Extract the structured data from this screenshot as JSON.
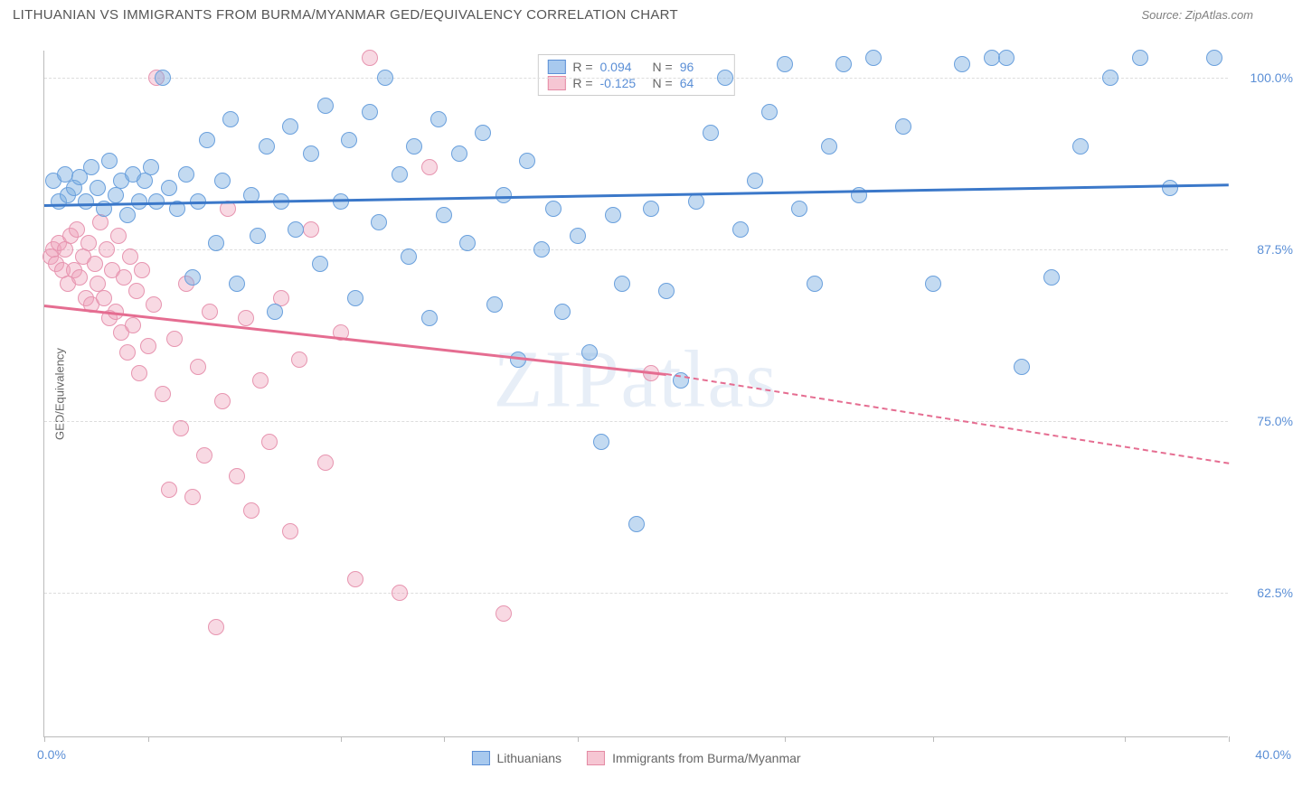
{
  "header": {
    "title": "LITHUANIAN VS IMMIGRANTS FROM BURMA/MYANMAR GED/EQUIVALENCY CORRELATION CHART",
    "source": "Source: ZipAtlas.com"
  },
  "watermark": "ZIPatlas",
  "axes": {
    "y_title": "GED/Equivalency",
    "x_min": 0.0,
    "x_max": 40.0,
    "x_start_label": "0.0%",
    "x_end_label": "40.0%",
    "x_ticks": [
      0,
      3.5,
      10,
      13.5,
      18,
      25,
      30,
      36.5,
      40
    ],
    "y_min": 52.0,
    "y_max": 102.0,
    "y_gridlines": [
      62.5,
      75.0,
      87.5,
      100.0
    ],
    "y_labels": [
      "62.5%",
      "75.0%",
      "87.5%",
      "100.0%"
    ]
  },
  "stats_legend": {
    "rows": [
      {
        "swatch_fill": "#a8c9ee",
        "swatch_border": "#5b8fd6",
        "r_label": "R =",
        "r_value": "0.094",
        "n_label": "N =",
        "n_value": "96"
      },
      {
        "swatch_fill": "#f6c6d3",
        "swatch_border": "#e48aa4",
        "r_label": "R =",
        "r_value": "-0.125",
        "n_label": "N =",
        "n_value": "64"
      }
    ]
  },
  "bottom_legend": {
    "items": [
      {
        "swatch_fill": "#a8c9ee",
        "swatch_border": "#5b8fd6",
        "label": "Lithuanians"
      },
      {
        "swatch_fill": "#f6c6d3",
        "swatch_border": "#e48aa4",
        "label": "Immigrants from Burma/Myanmar"
      }
    ]
  },
  "series": {
    "blue": {
      "fill": "rgba(122, 172, 224, 0.45)",
      "stroke": "#6aa0dd",
      "radius": 9,
      "trend_color": "#3b78c9",
      "trend": {
        "x1": 0,
        "y1": 90.8,
        "x2": 40,
        "y2": 92.3
      },
      "points": [
        [
          0.3,
          92.5
        ],
        [
          0.5,
          91.0
        ],
        [
          0.7,
          93.0
        ],
        [
          0.8,
          91.5
        ],
        [
          1.0,
          92.0
        ],
        [
          1.2,
          92.8
        ],
        [
          1.4,
          91.0
        ],
        [
          1.6,
          93.5
        ],
        [
          1.8,
          92.0
        ],
        [
          2.0,
          90.5
        ],
        [
          2.2,
          94.0
        ],
        [
          2.4,
          91.5
        ],
        [
          2.6,
          92.5
        ],
        [
          2.8,
          90.0
        ],
        [
          3.0,
          93.0
        ],
        [
          3.2,
          91.0
        ],
        [
          3.4,
          92.5
        ],
        [
          3.6,
          93.5
        ],
        [
          3.8,
          91.0
        ],
        [
          4.0,
          100.0
        ],
        [
          4.2,
          92.0
        ],
        [
          4.5,
          90.5
        ],
        [
          4.8,
          93.0
        ],
        [
          5.0,
          85.5
        ],
        [
          5.2,
          91.0
        ],
        [
          5.5,
          95.5
        ],
        [
          5.8,
          88.0
        ],
        [
          6.0,
          92.5
        ],
        [
          6.3,
          97.0
        ],
        [
          6.5,
          85.0
        ],
        [
          7.0,
          91.5
        ],
        [
          7.2,
          88.5
        ],
        [
          7.5,
          95.0
        ],
        [
          7.8,
          83.0
        ],
        [
          8.0,
          91.0
        ],
        [
          8.3,
          96.5
        ],
        [
          8.5,
          89.0
        ],
        [
          9.0,
          94.5
        ],
        [
          9.3,
          86.5
        ],
        [
          9.5,
          98.0
        ],
        [
          10.0,
          91.0
        ],
        [
          10.3,
          95.5
        ],
        [
          10.5,
          84.0
        ],
        [
          11.0,
          97.5
        ],
        [
          11.3,
          89.5
        ],
        [
          11.5,
          100.0
        ],
        [
          12.0,
          93.0
        ],
        [
          12.3,
          87.0
        ],
        [
          12.5,
          95.0
        ],
        [
          13.0,
          82.5
        ],
        [
          13.3,
          97.0
        ],
        [
          13.5,
          90.0
        ],
        [
          14.0,
          94.5
        ],
        [
          14.3,
          88.0
        ],
        [
          14.8,
          96.0
        ],
        [
          15.2,
          83.5
        ],
        [
          15.5,
          91.5
        ],
        [
          16.0,
          79.5
        ],
        [
          16.3,
          94.0
        ],
        [
          16.8,
          87.5
        ],
        [
          17.2,
          90.5
        ],
        [
          17.5,
          83.0
        ],
        [
          18.0,
          88.5
        ],
        [
          18.4,
          80.0
        ],
        [
          18.8,
          73.5
        ],
        [
          19.2,
          90.0
        ],
        [
          19.5,
          85.0
        ],
        [
          20.0,
          67.5
        ],
        [
          20.5,
          90.5
        ],
        [
          21.0,
          84.5
        ],
        [
          21.5,
          78.0
        ],
        [
          22.0,
          91.0
        ],
        [
          22.5,
          96.0
        ],
        [
          23.0,
          100.0
        ],
        [
          23.5,
          89.0
        ],
        [
          24.0,
          92.5
        ],
        [
          24.5,
          97.5
        ],
        [
          25.0,
          101.0
        ],
        [
          25.5,
          90.5
        ],
        [
          26.0,
          85.0
        ],
        [
          26.5,
          95.0
        ],
        [
          27.0,
          101.0
        ],
        [
          27.5,
          91.5
        ],
        [
          28.0,
          101.5
        ],
        [
          29.0,
          96.5
        ],
        [
          30.0,
          85.0
        ],
        [
          31.0,
          101.0
        ],
        [
          32.0,
          101.5
        ],
        [
          32.5,
          101.5
        ],
        [
          33.0,
          79.0
        ],
        [
          34.0,
          85.5
        ],
        [
          35.0,
          95.0
        ],
        [
          36.0,
          100.0
        ],
        [
          37.0,
          101.5
        ],
        [
          38.0,
          92.0
        ],
        [
          39.5,
          101.5
        ]
      ]
    },
    "pink": {
      "fill": "rgba(238, 160, 185, 0.40)",
      "stroke": "#e795b0",
      "radius": 9,
      "trend_color": "#e56d91",
      "trend_solid": {
        "x1": 0,
        "y1": 83.5,
        "x2": 21,
        "y2": 78.5
      },
      "trend_dash": {
        "x1": 21,
        "y1": 78.5,
        "x2": 40,
        "y2": 72.0
      },
      "points": [
        [
          0.2,
          87.0
        ],
        [
          0.3,
          87.5
        ],
        [
          0.4,
          86.5
        ],
        [
          0.5,
          88.0
        ],
        [
          0.6,
          86.0
        ],
        [
          0.7,
          87.5
        ],
        [
          0.8,
          85.0
        ],
        [
          0.9,
          88.5
        ],
        [
          1.0,
          86.0
        ],
        [
          1.1,
          89.0
        ],
        [
          1.2,
          85.5
        ],
        [
          1.3,
          87.0
        ],
        [
          1.4,
          84.0
        ],
        [
          1.5,
          88.0
        ],
        [
          1.6,
          83.5
        ],
        [
          1.7,
          86.5
        ],
        [
          1.8,
          85.0
        ],
        [
          1.9,
          89.5
        ],
        [
          2.0,
          84.0
        ],
        [
          2.1,
          87.5
        ],
        [
          2.2,
          82.5
        ],
        [
          2.3,
          86.0
        ],
        [
          2.4,
          83.0
        ],
        [
          2.5,
          88.5
        ],
        [
          2.6,
          81.5
        ],
        [
          2.7,
          85.5
        ],
        [
          2.8,
          80.0
        ],
        [
          2.9,
          87.0
        ],
        [
          3.0,
          82.0
        ],
        [
          3.1,
          84.5
        ],
        [
          3.2,
          78.5
        ],
        [
          3.3,
          86.0
        ],
        [
          3.5,
          80.5
        ],
        [
          3.7,
          83.5
        ],
        [
          3.8,
          100.0
        ],
        [
          4.0,
          77.0
        ],
        [
          4.2,
          70.0
        ],
        [
          4.4,
          81.0
        ],
        [
          4.6,
          74.5
        ],
        [
          4.8,
          85.0
        ],
        [
          5.0,
          69.5
        ],
        [
          5.2,
          79.0
        ],
        [
          5.4,
          72.5
        ],
        [
          5.6,
          83.0
        ],
        [
          5.8,
          60.0
        ],
        [
          6.0,
          76.5
        ],
        [
          6.2,
          90.5
        ],
        [
          6.5,
          71.0
        ],
        [
          6.8,
          82.5
        ],
        [
          7.0,
          68.5
        ],
        [
          7.3,
          78.0
        ],
        [
          7.6,
          73.5
        ],
        [
          8.0,
          84.0
        ],
        [
          8.3,
          67.0
        ],
        [
          8.6,
          79.5
        ],
        [
          9.0,
          89.0
        ],
        [
          9.5,
          72.0
        ],
        [
          10.0,
          81.5
        ],
        [
          10.5,
          63.5
        ],
        [
          11.0,
          101.5
        ],
        [
          12.0,
          62.5
        ],
        [
          13.0,
          93.5
        ],
        [
          15.5,
          61.0
        ],
        [
          20.5,
          78.5
        ]
      ]
    }
  }
}
